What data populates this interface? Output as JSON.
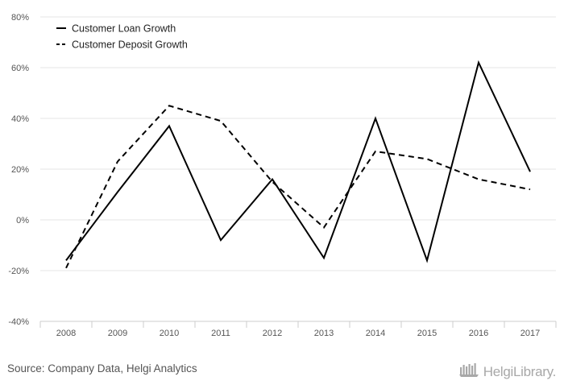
{
  "chart_data": {
    "type": "line",
    "categories": [
      "2008",
      "2009",
      "2010",
      "2011",
      "2012",
      "2013",
      "2014",
      "2015",
      "2016",
      "2017"
    ],
    "series": [
      {
        "name": "Customer Loan Growth",
        "style": "solid",
        "color": "#000000",
        "values": [
          -16,
          11,
          37,
          -8,
          16,
          -15,
          40,
          -16,
          62,
          19
        ]
      },
      {
        "name": "Customer Deposit Growth",
        "style": "dashed",
        "color": "#000000",
        "values": [
          -19,
          23,
          45,
          39,
          15,
          -3,
          27,
          24,
          16,
          12
        ]
      }
    ],
    "ylim": [
      -40,
      80
    ],
    "yticks": [
      -40,
      -20,
      0,
      20,
      40,
      60,
      80
    ],
    "ytick_labels": [
      "-40%",
      "-20%",
      "0%",
      "20%",
      "40%",
      "60%",
      "80%"
    ],
    "grid": true,
    "legend_position": "top-left",
    "title": "",
    "xlabel": "",
    "ylabel": ""
  },
  "footer": {
    "source": "Source: Company Data, Helgi Analytics",
    "brand": "HelgiLibrary."
  },
  "colors": {
    "grid": "#e6e6e6",
    "axis": "#cccccc",
    "tick_text": "#555555",
    "brand": "#a8a8a8"
  }
}
